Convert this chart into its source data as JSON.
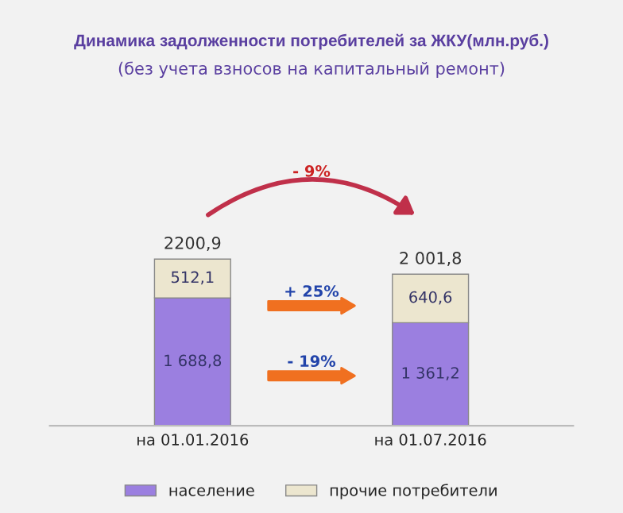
{
  "chart_data": {
    "type": "bar",
    "title": "Динамика задолженности потребителей за ЖКУ(млн.руб.)",
    "subtitle": "(без учета взносов на капитальный ремонт)",
    "categories": [
      "на 01.01.2016",
      "на 01.07.2016"
    ],
    "stacked": true,
    "series": [
      {
        "name": "население",
        "color": "#9b7fe0",
        "values": [
          1688.8,
          1361.2
        ],
        "value_labels": [
          "1 688,8",
          "1 361,2"
        ]
      },
      {
        "name": "прочие потребители",
        "color": "#ece6cf",
        "values": [
          512.1,
          640.6
        ],
        "value_labels": [
          "512,1",
          "640,6"
        ]
      }
    ],
    "totals": [
      "2200,9",
      "2 001,8"
    ],
    "annotations": [
      "- 9%",
      "+ 25%",
      "- 19%"
    ],
    "legend": "bottom",
    "grid": false
  }
}
